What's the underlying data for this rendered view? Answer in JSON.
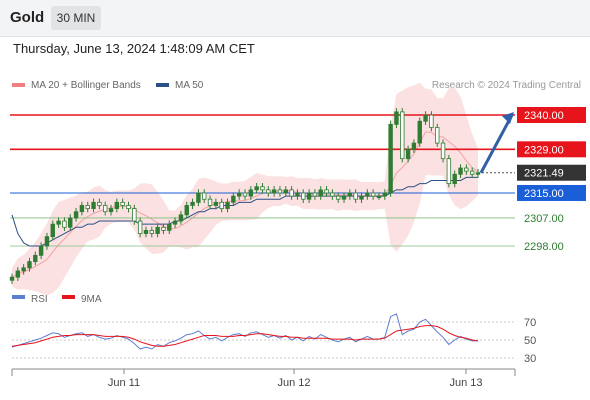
{
  "header": {
    "title": "Gold",
    "timeframe": "30 MIN"
  },
  "datetime": "Thursday, June 13, 2024 1:48:09 AM CET",
  "legend": {
    "ma_bollinger": "MA 20 + Bollinger Bands",
    "ma50": "MA 50",
    "credit": "Research © 2024 Trading Central"
  },
  "colors": {
    "resistance": "#e8141b",
    "support": "#1a5ed8",
    "ma50": "#2c4f86",
    "bollinger_fill": "#fbe1e1",
    "candle": "#2e7d32",
    "rsi": "#5b7fd1",
    "rsi_ma": "#e8141b",
    "arrow": "#2f5fa6"
  },
  "chart_data": [
    {
      "type": "candlestick",
      "title": "Gold",
      "timeframe": "30 MIN",
      "x_labels": [
        "Jun 11",
        "Jun 12",
        "Jun 13"
      ],
      "ylim": [
        2280,
        2352
      ],
      "levels": [
        {
          "value": 2340.0,
          "label": "2340.00",
          "kind": "resistance"
        },
        {
          "value": 2329.0,
          "label": "2329.00",
          "kind": "resistance"
        },
        {
          "value": 2321.49,
          "label": "2321.49",
          "kind": "last"
        },
        {
          "value": 2315.0,
          "label": "2315.00",
          "kind": "support"
        },
        {
          "value": 2307.0,
          "label": "2307.00",
          "kind": "pivot"
        },
        {
          "value": 2298.0,
          "label": "2298.00",
          "kind": "pivot"
        }
      ],
      "close_series": [
        2288,
        2290,
        2291,
        2293,
        2295,
        2298,
        2301,
        2305,
        2306,
        2304,
        2307,
        2309,
        2311,
        2310,
        2312,
        2311,
        2309,
        2310,
        2312,
        2311,
        2310,
        2306,
        2302,
        2303,
        2302,
        2304,
        2303,
        2305,
        2306,
        2308,
        2311,
        2312,
        2315,
        2313,
        2311,
        2312,
        2310,
        2312,
        2314,
        2315,
        2314,
        2316,
        2317,
        2316,
        2315,
        2316,
        2315,
        2316,
        2314,
        2315,
        2313,
        2315,
        2314,
        2316,
        2315,
        2314,
        2313,
        2314,
        2315,
        2313,
        2314,
        2315,
        2314,
        2314,
        2315,
        2337,
        2341,
        2326,
        2329,
        2331,
        2338,
        2340,
        2336,
        2331,
        2326,
        2318,
        2321,
        2323,
        2322,
        2321,
        2321.49
      ],
      "ma50_series": [
        2308,
        2302,
        2299,
        2298,
        2298,
        2298,
        2299,
        2300,
        2301,
        2302,
        2303,
        2304,
        2304,
        2305,
        2305,
        2306,
        2306,
        2306,
        2306,
        2306,
        2306,
        2306,
        2305,
        2305,
        2305,
        2305,
        2305,
        2305,
        2306,
        2306,
        2307,
        2308,
        2309,
        2309,
        2310,
        2310,
        2311,
        2311,
        2311,
        2312,
        2312,
        2312,
        2313,
        2313,
        2313,
        2313,
        2313,
        2314,
        2314,
        2314,
        2314,
        2314,
        2314,
        2314,
        2314,
        2314,
        2314,
        2314,
        2314,
        2314,
        2314,
        2314,
        2314,
        2314,
        2314,
        2315,
        2316,
        2316,
        2317,
        2317,
        2318,
        2318,
        2319,
        2319,
        2319,
        2319,
        2319,
        2319,
        2320,
        2320,
        2320
      ]
    },
    {
      "type": "line",
      "series": [
        {
          "name": "RSI",
          "values": [
            42,
            44,
            46,
            48,
            50,
            52,
            55,
            58,
            57,
            53,
            55,
            57,
            58,
            54,
            56,
            53,
            51,
            52,
            55,
            53,
            51,
            46,
            40,
            42,
            40,
            45,
            43,
            47,
            49,
            52,
            56,
            57,
            60,
            55,
            51,
            53,
            49,
            53,
            56,
            57,
            54,
            58,
            59,
            56,
            53,
            55,
            52,
            55,
            50,
            53,
            49,
            54,
            51,
            56,
            53,
            50,
            48,
            51,
            53,
            48,
            51,
            54,
            51,
            51,
            53,
            76,
            79,
            56,
            60,
            62,
            70,
            73,
            66,
            59,
            53,
            45,
            50,
            54,
            51,
            49,
            49
          ]
        },
        {
          "name": "9MA",
          "values": [
            43,
            44,
            45,
            46,
            47,
            49,
            51,
            53,
            54,
            55,
            55,
            56,
            56,
            56,
            56,
            55,
            54,
            54,
            54,
            54,
            53,
            51,
            48,
            46,
            44,
            43,
            43,
            44,
            45,
            47,
            49,
            51,
            53,
            55,
            55,
            55,
            54,
            54,
            54,
            55,
            55,
            56,
            57,
            57,
            56,
            55,
            54,
            54,
            53,
            53,
            52,
            52,
            52,
            52,
            52,
            51,
            51,
            51,
            51,
            50,
            51,
            51,
            51,
            51,
            52,
            56,
            60,
            61,
            62,
            63,
            65,
            66,
            66,
            65,
            62,
            58,
            55,
            53,
            52,
            50,
            49
          ]
        }
      ],
      "yticks": [
        30,
        50,
        70
      ],
      "ylim": [
        20,
        85
      ]
    }
  ],
  "axis": {
    "rsi_ticks": [
      "70",
      "50",
      "30"
    ],
    "dates": [
      "Jun 11",
      "Jun 12",
      "Jun 13"
    ]
  }
}
